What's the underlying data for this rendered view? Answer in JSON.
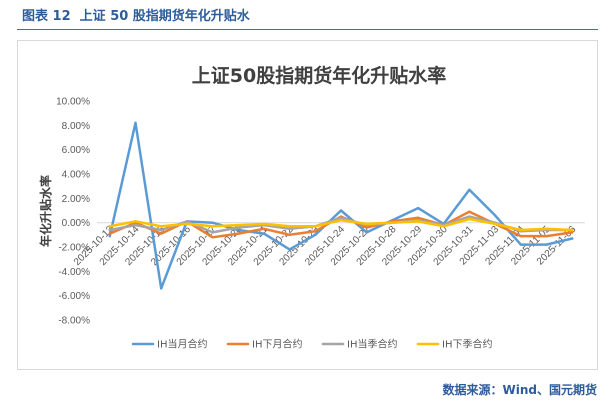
{
  "header": {
    "caption": "图表 12  上证 50 股指期货年化升贴水"
  },
  "footer": {
    "source": "数据来源：Wind、国元期货"
  },
  "theme": {
    "accent": "#2E5C9A"
  },
  "chart_data": {
    "type": "line",
    "title": "上证50股指期货年化升贴水率",
    "ylabel": "年化升贴水率",
    "ylim": [
      -8,
      10
    ],
    "yticks": [
      10,
      8,
      6,
      4,
      2,
      0,
      -2,
      -4,
      -6,
      -8
    ],
    "ytick_labels": [
      "10.00%",
      "8.00%",
      "6.00%",
      "4.00%",
      "2.00%",
      "0.00%",
      "-2.00%",
      "-4.00%",
      "-6.00%",
      "-8.00%"
    ],
    "categories": [
      "2025-10-13",
      "2025-10-14",
      "2025-10-15",
      "2025-10-16",
      "2025-10-17",
      "2025-10-20",
      "2025-10-21",
      "2025-10-22",
      "2025-10-23",
      "2025-10-24",
      "2025-10-27",
      "2025-10-28",
      "2025-10-29",
      "2025-10-30",
      "2025-10-31",
      "2025-11-03",
      "2025-11-04",
      "2025-11-05",
      "2025-11-06"
    ],
    "series": [
      {
        "name": "IH当月合约",
        "color": "#5B9BD5",
        "values": [
          -1.1,
          8.2,
          -5.4,
          0.1,
          0.0,
          -0.6,
          -0.9,
          -2.2,
          -1.0,
          1.0,
          -0.8,
          0.2,
          1.2,
          -0.1,
          2.7,
          0.6,
          -1.8,
          -1.8,
          -1.3
        ]
      },
      {
        "name": "IH下月合约",
        "color": "#ED7D31",
        "values": [
          -0.9,
          0.0,
          -0.9,
          0.1,
          -1.2,
          -0.9,
          -0.5,
          -1.0,
          -0.7,
          0.5,
          -0.4,
          0.1,
          0.4,
          -0.2,
          0.9,
          -0.1,
          -1.1,
          -1.1,
          -0.8
        ]
      },
      {
        "name": "IH当季合约",
        "color": "#A5A5A5",
        "values": [
          -0.6,
          -0.2,
          -0.6,
          0.1,
          -0.8,
          -0.4,
          -0.2,
          -0.5,
          -0.3,
          0.4,
          -0.2,
          0.0,
          0.2,
          -0.2,
          0.5,
          0.0,
          -0.7,
          -0.6,
          -0.6
        ]
      },
      {
        "name": "IH下季合约",
        "color": "#FFC000",
        "values": [
          -0.3,
          0.1,
          -0.3,
          -0.1,
          -0.3,
          -0.2,
          -0.1,
          -0.3,
          -0.3,
          0.2,
          -0.1,
          0.0,
          0.1,
          -0.3,
          0.3,
          -0.1,
          -0.6,
          -0.5,
          -0.6
        ]
      }
    ],
    "legend": "bottom",
    "grid": false
  }
}
